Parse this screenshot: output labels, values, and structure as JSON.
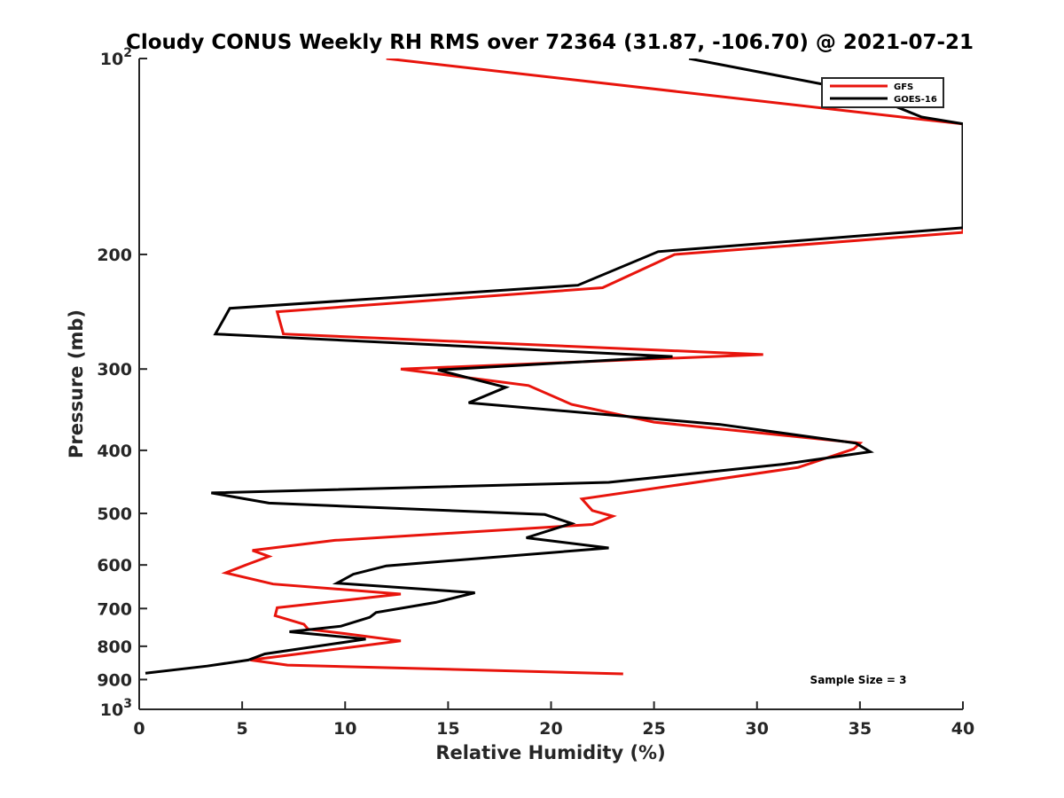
{
  "chart_data": {
    "type": "line",
    "title": "Cloudy CONUS Weekly RH RMS over 72364 (31.87, -106.70) @ 2021-07-21",
    "xlabel": "Relative Humidity (%)",
    "ylabel": "Pressure (mb)",
    "xlim": [
      0,
      40
    ],
    "ylim": [
      100,
      1000
    ],
    "yscale": "log",
    "y_reversed": true,
    "grid": false,
    "xticks": [
      {
        "value": 0,
        "label": "0"
      },
      {
        "value": 5,
        "label": "5"
      },
      {
        "value": 10,
        "label": "10"
      },
      {
        "value": 15,
        "label": "15"
      },
      {
        "value": 20,
        "label": "20"
      },
      {
        "value": 25,
        "label": "25"
      },
      {
        "value": 30,
        "label": "30"
      },
      {
        "value": 35,
        "label": "35"
      },
      {
        "value": 40,
        "label": "40"
      }
    ],
    "yticks": [
      {
        "value": 100,
        "label": "10",
        "sup": "2"
      },
      {
        "value": 200,
        "label": "200",
        "sup": ""
      },
      {
        "value": 300,
        "label": "300",
        "sup": ""
      },
      {
        "value": 400,
        "label": "400",
        "sup": ""
      },
      {
        "value": 500,
        "label": "500",
        "sup": ""
      },
      {
        "value": 600,
        "label": "600",
        "sup": ""
      },
      {
        "value": 700,
        "label": "700",
        "sup": ""
      },
      {
        "value": 800,
        "label": "800",
        "sup": ""
      },
      {
        "value": 900,
        "label": "900",
        "sup": ""
      },
      {
        "value": 1000,
        "label": "10",
        "sup": "3"
      }
    ],
    "legend_position": "top-right",
    "annotation": "Sample Size = 3",
    "series": [
      {
        "name": "GFS",
        "color": "#e8140c",
        "points": [
          [
            12.0,
            100
          ],
          [
            38.0,
            124
          ],
          [
            40.0,
            126
          ],
          [
            40.0,
            185
          ],
          [
            26.0,
            200
          ],
          [
            22.5,
            225
          ],
          [
            6.7,
            245
          ],
          [
            7.0,
            265
          ],
          [
            30.3,
            285
          ],
          [
            12.7,
            300
          ],
          [
            18.9,
            318
          ],
          [
            21.0,
            340
          ],
          [
            25.0,
            362
          ],
          [
            35.0,
            390
          ],
          [
            34.7,
            398
          ],
          [
            32.0,
            425
          ],
          [
            21.5,
            475
          ],
          [
            22.0,
            495
          ],
          [
            23.0,
            505
          ],
          [
            22.0,
            520
          ],
          [
            9.5,
            550
          ],
          [
            5.5,
            570
          ],
          [
            6.3,
            582
          ],
          [
            5.3,
            598
          ],
          [
            4.2,
            617
          ],
          [
            6.5,
            642
          ],
          [
            12.7,
            665
          ],
          [
            6.7,
            698
          ],
          [
            6.6,
            718
          ],
          [
            8.0,
            740
          ],
          [
            8.2,
            753
          ],
          [
            10.0,
            765
          ],
          [
            12.7,
            785
          ],
          [
            5.4,
            840
          ],
          [
            7.2,
            855
          ],
          [
            23.5,
            882
          ]
        ]
      },
      {
        "name": "GOES-16",
        "color": "#000000",
        "points": [
          [
            26.7,
            100
          ],
          [
            34.8,
            112
          ],
          [
            38.0,
            123
          ],
          [
            40.0,
            126
          ],
          [
            40.0,
            182
          ],
          [
            25.2,
            198
          ],
          [
            21.3,
            223
          ],
          [
            4.4,
            242
          ],
          [
            3.7,
            265
          ],
          [
            25.9,
            287
          ],
          [
            14.5,
            301
          ],
          [
            17.8,
            320
          ],
          [
            16.0,
            338
          ],
          [
            28.2,
            365
          ],
          [
            34.8,
            390
          ],
          [
            35.5,
            402
          ],
          [
            31.3,
            420
          ],
          [
            22.8,
            448
          ],
          [
            3.5,
            465
          ],
          [
            6.3,
            482
          ],
          [
            19.7,
            502
          ],
          [
            21.0,
            518
          ],
          [
            18.8,
            545
          ],
          [
            22.8,
            565
          ],
          [
            12.0,
            602
          ],
          [
            10.4,
            620
          ],
          [
            9.6,
            640
          ],
          [
            16.3,
            662
          ],
          [
            14.4,
            685
          ],
          [
            11.5,
            710
          ],
          [
            11.2,
            722
          ],
          [
            9.8,
            745
          ],
          [
            7.3,
            760
          ],
          [
            11.0,
            780
          ],
          [
            6.1,
            822
          ],
          [
            5.3,
            840
          ],
          [
            3.3,
            858
          ],
          [
            0.3,
            880
          ]
        ]
      }
    ]
  }
}
